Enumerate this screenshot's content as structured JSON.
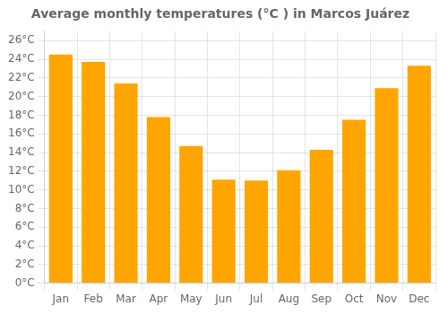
{
  "chart_data": {
    "type": "bar",
    "title": "Average monthly temperatures (°C ) in Marcos Juárez",
    "categories": [
      "Jan",
      "Feb",
      "Mar",
      "Apr",
      "May",
      "Jun",
      "Jul",
      "Aug",
      "Sep",
      "Oct",
      "Nov",
      "Dec"
    ],
    "values": [
      24.5,
      23.7,
      21.4,
      17.8,
      14.7,
      11.1,
      11.0,
      12.1,
      14.3,
      17.5,
      20.9,
      23.3
    ],
    "color": "#FFA500",
    "ylim": [
      0,
      27
    ],
    "yticks": [
      {
        "value": 0,
        "label": "0°C"
      },
      {
        "value": 2,
        "label": "2°C"
      },
      {
        "value": 4,
        "label": "4°C"
      },
      {
        "value": 6,
        "label": "6°C"
      },
      {
        "value": 8,
        "label": "8°C"
      },
      {
        "value": 10,
        "label": "10°C"
      },
      {
        "value": 12,
        "label": "12°C"
      },
      {
        "value": 14,
        "label": "14°C"
      },
      {
        "value": 16,
        "label": "16°C"
      },
      {
        "value": 18,
        "label": "18°C"
      },
      {
        "value": 20,
        "label": "20°C"
      },
      {
        "value": 22,
        "label": "22°C"
      },
      {
        "value": 24,
        "label": "24°C"
      },
      {
        "value": 26,
        "label": "26°C"
      }
    ],
    "grid": true
  }
}
